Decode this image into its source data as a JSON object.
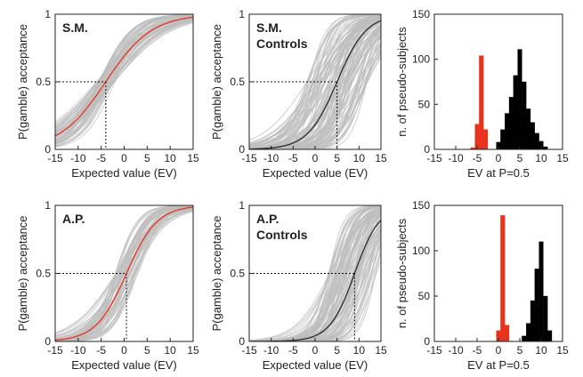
{
  "figure": {
    "colors": {
      "bands": "#bdbdbd",
      "patient_curve": "#e8331c",
      "control_curve": "#2a2a2a",
      "patient_hist": "#e8331c",
      "control_hist": "#000000",
      "axes": "#222222"
    }
  },
  "chart_data": [
    {
      "type": "line",
      "panel": "top-left",
      "title": "S.M.",
      "xlabel": "Expected value (EV)",
      "ylabel": "P(gamble) acceptance",
      "xlim": [
        -15,
        15
      ],
      "ylim": [
        0,
        1
      ],
      "xticks": [
        -15,
        -10,
        -5,
        0,
        5,
        10,
        15
      ],
      "yticks": [
        0,
        0.5,
        1
      ],
      "series": [
        {
          "color": "#e8331c",
          "threshold": -4,
          "slope": 0.2
        }
      ],
      "bands": {
        "count": 60,
        "threshold_range": [
          -6,
          -2
        ],
        "slope_range": [
          0.15,
          0.32
        ]
      },
      "reference": {
        "x": -4,
        "y": 0.5
      }
    },
    {
      "type": "line",
      "panel": "top-middle",
      "title": "S.M.",
      "subtitle": "Controls",
      "xlabel": "Expected value (EV)",
      "ylabel": "P(gamble) acceptance",
      "xlim": [
        -15,
        15
      ],
      "ylim": [
        0,
        1
      ],
      "xticks": [
        -15,
        -10,
        -5,
        0,
        5,
        10,
        15
      ],
      "yticks": [
        0,
        0.5,
        1
      ],
      "series": [
        {
          "color": "#2a2a2a",
          "threshold": 5,
          "slope": 0.3
        }
      ],
      "bands": {
        "count": 120,
        "threshold_range": [
          -2,
          12
        ],
        "slope_range": [
          0.18,
          0.55
        ]
      },
      "reference": {
        "x": 5,
        "y": 0.5
      }
    },
    {
      "type": "bar",
      "panel": "top-right",
      "xlabel": "EV at P=0.5",
      "ylabel": "n. of pseudo-subjects",
      "xlim": [
        -15,
        15
      ],
      "ylim": [
        0,
        150
      ],
      "xticks": [
        -15,
        -10,
        -5,
        0,
        5,
        10,
        15
      ],
      "yticks": [
        0,
        50,
        100,
        150
      ],
      "bin_width": 1,
      "series": [
        {
          "color": "#e8331c",
          "bins": [
            [
              -6,
              2
            ],
            [
              -5,
              28
            ],
            [
              -4,
              104
            ],
            [
              -3,
              22
            ]
          ]
        },
        {
          "color": "#000000",
          "bins": [
            [
              0,
              8
            ],
            [
              1,
              22
            ],
            [
              2,
              40
            ],
            [
              3,
              58
            ],
            [
              4,
              82
            ],
            [
              5,
              111
            ],
            [
              6,
              75
            ],
            [
              7,
              45
            ],
            [
              8,
              30
            ],
            [
              9,
              18
            ],
            [
              10,
              9
            ],
            [
              11,
              3
            ]
          ]
        }
      ]
    },
    {
      "type": "line",
      "panel": "bottom-left",
      "title": "A.P.",
      "xlabel": "Expected value (EV)",
      "ylabel": "P(gamble) acceptance",
      "xlim": [
        -15,
        15
      ],
      "ylim": [
        0,
        1
      ],
      "xticks": [
        -15,
        -10,
        -5,
        0,
        5,
        10,
        15
      ],
      "yticks": [
        0,
        0.5,
        1
      ],
      "series": [
        {
          "color": "#e8331c",
          "threshold": 0.5,
          "slope": 0.3
        }
      ],
      "bands": {
        "count": 60,
        "threshold_range": [
          -2,
          3
        ],
        "slope_range": [
          0.2,
          0.45
        ]
      },
      "reference": {
        "x": 0.5,
        "y": 0.5
      }
    },
    {
      "type": "line",
      "panel": "bottom-middle",
      "title": "A.P.",
      "subtitle": "Controls",
      "xlabel": "Expected value (EV)",
      "ylabel": "P(gamble) acceptance",
      "xlim": [
        -15,
        15
      ],
      "ylim": [
        0,
        1
      ],
      "xticks": [
        -15,
        -10,
        -5,
        0,
        5,
        10,
        15
      ],
      "yticks": [
        0,
        0.5,
        1
      ],
      "series": [
        {
          "color": "#2a2a2a",
          "threshold": 9,
          "slope": 0.35
        }
      ],
      "bands": {
        "count": 100,
        "threshold_range": [
          3,
          14
        ],
        "slope_range": [
          0.25,
          0.6
        ]
      },
      "reference": {
        "x": 9,
        "y": 0.5
      }
    },
    {
      "type": "bar",
      "panel": "bottom-right",
      "xlabel": "EV at P=0.5",
      "ylabel": "n. of pseudo-subjects",
      "xlim": [
        -15,
        15
      ],
      "ylim": [
        0,
        150
      ],
      "xticks": [
        -15,
        -10,
        -5,
        0,
        5,
        10,
        15
      ],
      "yticks": [
        0,
        50,
        100,
        150
      ],
      "bin_width": 1,
      "series": [
        {
          "color": "#e8331c",
          "bins": [
            [
              0,
              12
            ],
            [
              1,
              139
            ],
            [
              2,
              18
            ]
          ]
        },
        {
          "color": "#000000",
          "bins": [
            [
              6,
              6
            ],
            [
              7,
              20
            ],
            [
              8,
              45
            ],
            [
              9,
              80
            ],
            [
              10,
              110
            ],
            [
              11,
              50
            ],
            [
              12,
              12
            ]
          ]
        }
      ]
    }
  ]
}
